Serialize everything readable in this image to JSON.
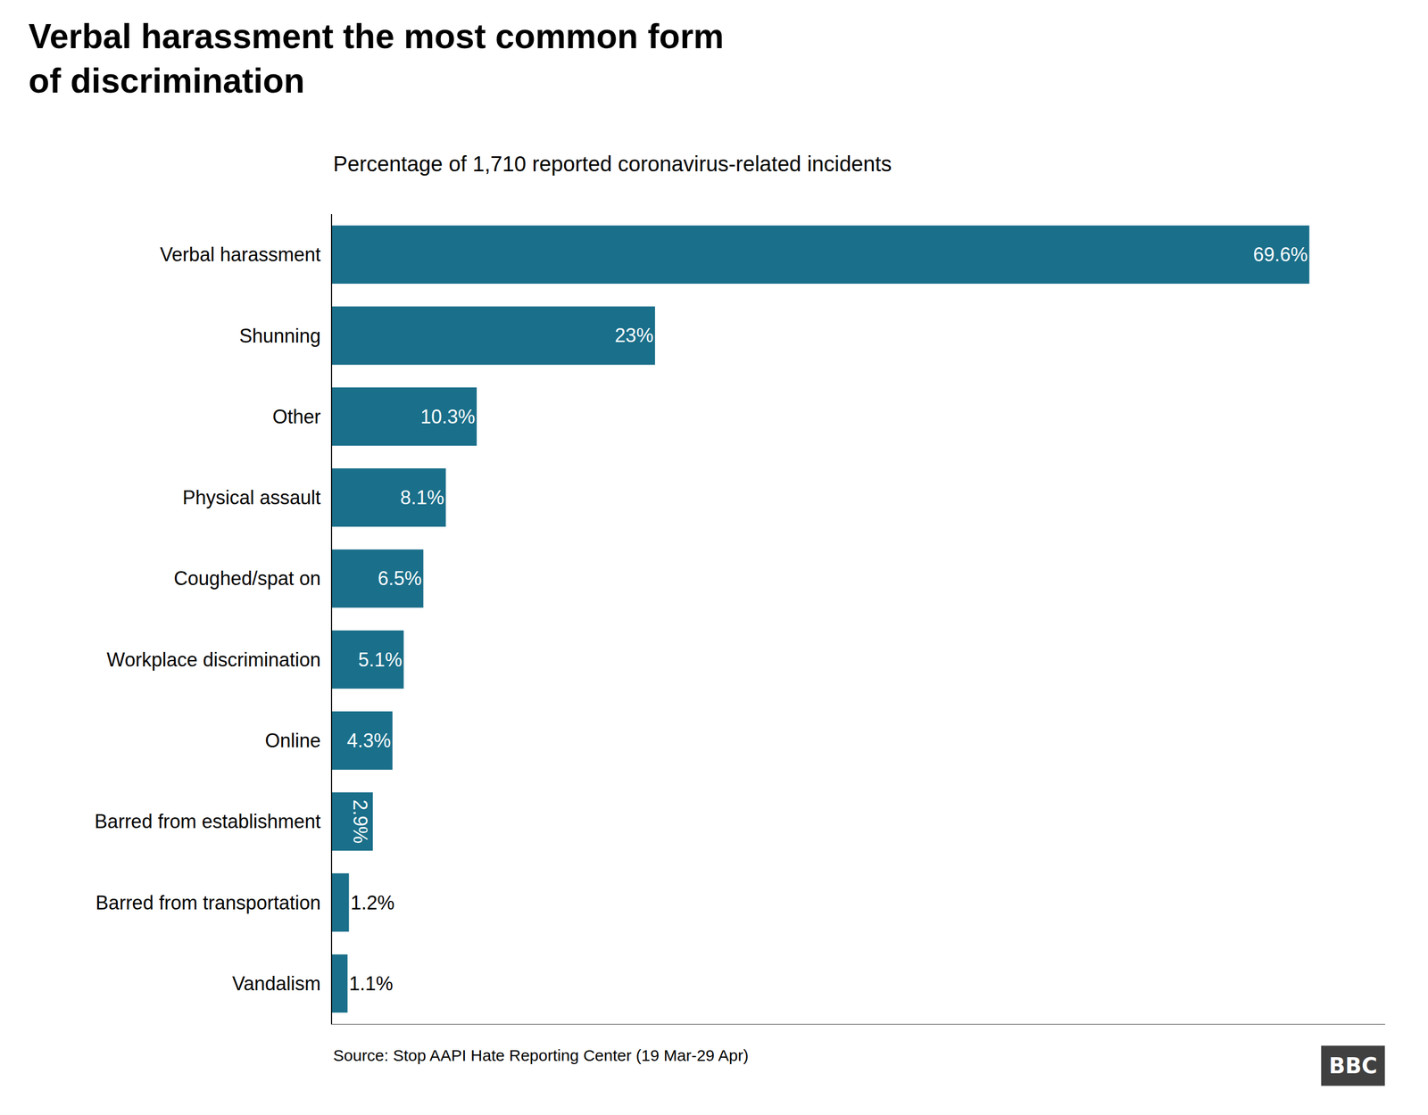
{
  "chart_data": {
    "type": "bar",
    "orientation": "horizontal",
    "title": "Verbal harassment the most common form\nof discrimination",
    "subtitle": "Percentage of 1,710 reported coronavirus-related incidents",
    "annotations": [
      "Source: Stop AAPI Hate Reporting Center (19 Mar-29 Apr)",
      "BBC"
    ],
    "categories": [
      "Verbal harassment",
      "Shunning",
      "Other",
      "Physical assault",
      "Coughed/spat on",
      "Workplace discrimination",
      "Online",
      "Barred from establishment",
      "Barred from transportation",
      "Vandalism"
    ],
    "values": [
      69.6,
      23,
      10.3,
      8.1,
      6.5,
      5.1,
      4.3,
      2.9,
      1.2,
      1.1
    ],
    "value_labels": [
      "69.6%",
      "23%",
      "10.3%",
      "8.1%",
      "6.5%",
      "5.1%",
      "4.3%",
      "2.9%",
      "1.2%",
      "1.1%"
    ],
    "color": "#1a6f8a",
    "xlim": [
      0,
      75
    ],
    "grid": false,
    "data_labels": true,
    "tick_labels": "y"
  }
}
